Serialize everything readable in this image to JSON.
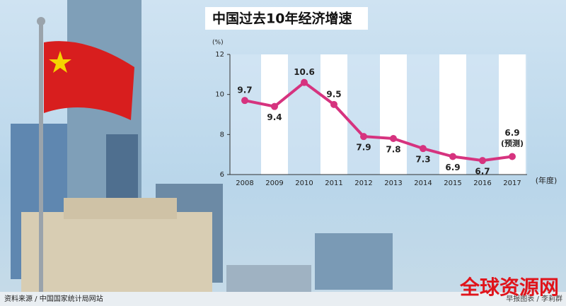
{
  "chart_data": {
    "type": "line",
    "title": "中国过去10年经济增速",
    "y_unit": "(%)",
    "x_unit": "(年度)",
    "categories": [
      "2008",
      "2009",
      "2010",
      "2011",
      "2012",
      "2013",
      "2014",
      "2015",
      "2016",
      "2017"
    ],
    "series": [
      {
        "name": "经济增速",
        "color": "#d6337f",
        "values": [
          9.7,
          9.4,
          10.6,
          9.5,
          7.9,
          7.8,
          7.3,
          6.9,
          6.7,
          6.9
        ]
      }
    ],
    "forecast_note": "(预测)",
    "ylim": [
      6,
      12
    ],
    "yticks": [
      6,
      8,
      10,
      12
    ],
    "source": "资料来源 / 中国国家统计局网站",
    "credit": "早报图表 / 李莉群",
    "watermark": "全球资源网"
  }
}
